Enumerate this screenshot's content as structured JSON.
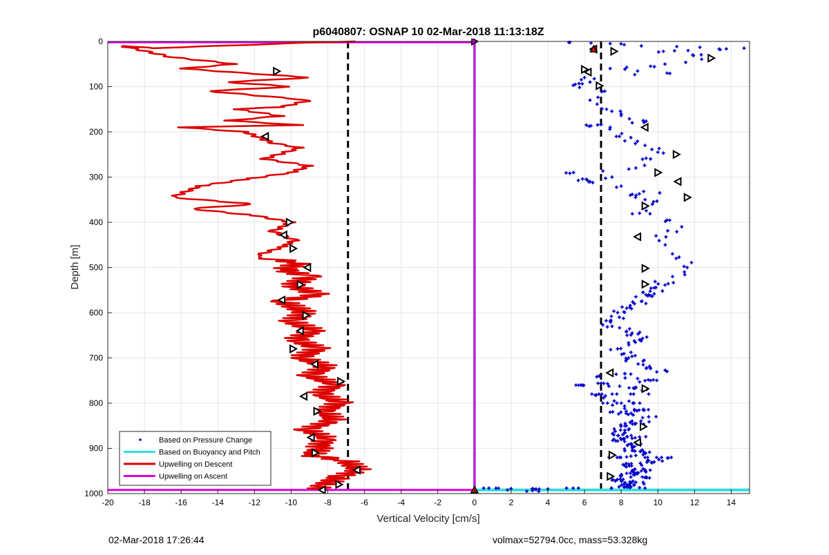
{
  "chart_data": {
    "type": "scatter",
    "title": "p6040807: OSNAP 10 02-Mar-2018 11:13:18Z",
    "xlabel": "Vertical Velocity [cm/s]",
    "ylabel": "Depth [m]",
    "xlim": [
      -20,
      15
    ],
    "ylim": [
      0,
      1000
    ],
    "y_reversed": true,
    "grid": true,
    "x_ticks": [
      -20,
      -18,
      -16,
      -14,
      -12,
      -10,
      -8,
      -6,
      -4,
      -2,
      0,
      2,
      4,
      6,
      8,
      10,
      12,
      14
    ],
    "y_ticks": [
      0,
      100,
      200,
      300,
      400,
      500,
      600,
      700,
      800,
      900,
      1000
    ],
    "legend_position": "bottom-left",
    "colors": {
      "pressure": "#0000cc",
      "buoyancy": "#33dddd",
      "descent": "#dd0000",
      "ascent": "#dd00dd",
      "reference": "#000000"
    },
    "series": [
      {
        "name": "Based on Pressure Change",
        "style": "dots",
        "x": [
          5.2,
          7.4,
          9.1,
          10.3,
          11.9,
          13.4,
          14.7,
          12.8,
          9.6,
          10.5,
          7.4,
          6.0,
          5.5,
          6.3,
          7.1,
          6.3,
          7.2,
          8.0,
          8.6,
          9.2,
          7.4,
          6.1,
          7.9,
          8.2,
          9.3,
          10.0,
          9.6,
          8.8,
          7.5,
          6.1,
          5.4,
          6.3,
          8.0,
          8.5,
          9.3,
          10.1,
          9.7,
          9.0,
          10.5,
          11.3,
          9.9,
          10.4,
          11.0,
          11.6,
          10.8,
          9.8,
          9.5,
          9.1,
          8.3,
          7.9,
          7.5,
          8.6,
          9.0,
          7.8,
          8.4,
          9.2,
          10.5,
          9.6,
          8.8,
          9.5,
          8.7,
          9.2,
          9.9,
          8.8,
          8.2,
          9.0,
          7.6,
          8.6,
          9.3,
          7.9,
          8.4,
          9.1,
          8.0,
          7.5,
          8.7,
          9.3,
          8.2,
          8.8,
          9.4,
          8.5,
          9.2,
          9.8,
          10.2,
          8.6,
          9.0,
          7.6,
          8.2,
          7.4,
          7.0,
          6.4,
          5.8,
          6.8,
          4.0,
          3.5,
          1.8,
          0.5
        ],
        "y": [
          2,
          5,
          10,
          22,
          30,
          18,
          15,
          40,
          55,
          70,
          60,
          80,
          95,
          90,
          110,
          130,
          150,
          160,
          180,
          175,
          190,
          185,
          210,
          220,
          230,
          245,
          260,
          280,
          300,
          305,
          290,
          310,
          320,
          340,
          350,
          335,
          360,
          380,
          395,
          410,
          430,
          450,
          480,
          500,
          520,
          545,
          560,
          575,
          590,
          610,
          630,
          645,
          660,
          680,
          700,
          715,
          730,
          750,
          765,
          780,
          800,
          815,
          830,
          845,
          860,
          875,
          880,
          895,
          910,
          920,
          935,
          950,
          960,
          970,
          980,
          988,
          985,
          975,
          965,
          955,
          945,
          930,
          920,
          905,
          890,
          870,
          850,
          820,
          800,
          780,
          760,
          740,
          990,
          995,
          992,
          988
        ]
      },
      {
        "name": "Based on Buoyancy and Pitch",
        "style": "line",
        "x": [
          0.0,
          0.0
        ],
        "y": [
          0,
          992
        ]
      },
      {
        "name": "Upwelling on Descent",
        "style": "line",
        "x": [
          -6.5,
          -8.5,
          -17.5,
          -19.2,
          -16.5,
          -13.0,
          -16.0,
          -12.5,
          -9.0,
          -13.5,
          -10.0,
          -14.5,
          -9.0,
          -10.5,
          -13.0,
          -10.5,
          -13.5,
          -9.5,
          -16.0,
          -12.5,
          -11.0,
          -9.5,
          -11.5,
          -9.0,
          -10.0,
          -12.5,
          -15.0,
          -16.5,
          -12.0,
          -15.5,
          -12.0,
          -10.0,
          -11.0,
          -9.8,
          -10.5,
          -12.0,
          -9.5,
          -10.5,
          -9.0,
          -10.0,
          -8.5,
          -10.5,
          -9.2,
          -10.0,
          -8.7,
          -9.8,
          -8.5,
          -9.5,
          -8.0,
          -9.0,
          -7.5,
          -8.5,
          -7.3,
          -8.2,
          -7.7,
          -9.2,
          -8.0,
          -8.5,
          -9.0,
          -7.2,
          -6.3,
          -7.5,
          -8.5,
          -8.2
        ],
        "y": [
          0,
          2,
          15,
          10,
          35,
          50,
          60,
          70,
          80,
          90,
          100,
          110,
          130,
          145,
          150,
          165,
          175,
          185,
          190,
          200,
          225,
          235,
          260,
          275,
          290,
          305,
          320,
          345,
          360,
          370,
          385,
          400,
          420,
          440,
          455,
          475,
          490,
          505,
          520,
          540,
          560,
          575,
          600,
          620,
          640,
          660,
          680,
          700,
          720,
          740,
          760,
          780,
          800,
          820,
          840,
          860,
          880,
          900,
          915,
          925,
          950,
          965,
          985,
          992
        ]
      },
      {
        "name": "Upwelling on Ascent",
        "style": "line",
        "x": [
          -20,
          0,
          0,
          -20
        ],
        "y": [
          2,
          2,
          992,
          992
        ]
      }
    ],
    "reference_lines": [
      {
        "x": -6.9,
        "style": "dashed"
      },
      {
        "x": 6.9,
        "style": "dashed"
      }
    ],
    "markers": {
      "pressure": [
        [
          6.5,
          17
        ],
        [
          7.6,
          22
        ],
        [
          12.9,
          37
        ],
        [
          6.2,
          68
        ],
        [
          6.0,
          62
        ],
        [
          6.8,
          98
        ],
        [
          9.3,
          190
        ],
        [
          11.0,
          250
        ],
        [
          10.0,
          290
        ],
        [
          11.1,
          310
        ],
        [
          11.6,
          345
        ],
        [
          9.3,
          364
        ],
        [
          8.9,
          432
        ],
        [
          9.3,
          502
        ],
        [
          9.3,
          537
        ],
        [
          7.4,
          733
        ],
        [
          9.3,
          768
        ],
        [
          9.2,
          852
        ],
        [
          8.9,
          887
        ],
        [
          7.5,
          915
        ],
        [
          7.4,
          962
        ]
      ],
      "descent": [
        [
          -10.8,
          66
        ],
        [
          -11.4,
          210
        ],
        [
          -10.1,
          400
        ],
        [
          -10.4,
          428
        ],
        [
          -9.9,
          458
        ],
        [
          -9.1,
          500
        ],
        [
          -9.5,
          538
        ],
        [
          -10.5,
          572
        ],
        [
          -9.2,
          606
        ],
        [
          -9.5,
          640
        ],
        [
          -9.9,
          680
        ],
        [
          -8.7,
          714
        ],
        [
          -7.3,
          752
        ],
        [
          -9.3,
          785
        ],
        [
          -8.6,
          818
        ],
        [
          -8.9,
          876
        ],
        [
          -8.7,
          910
        ],
        [
          -6.4,
          948
        ],
        [
          -7.4,
          980
        ],
        [
          -8.3,
          992
        ]
      ]
    }
  },
  "footer": {
    "left": "02-Mar-2018 17:26:44",
    "right": "volmax=52794.0cc, mass=53.328kg"
  }
}
